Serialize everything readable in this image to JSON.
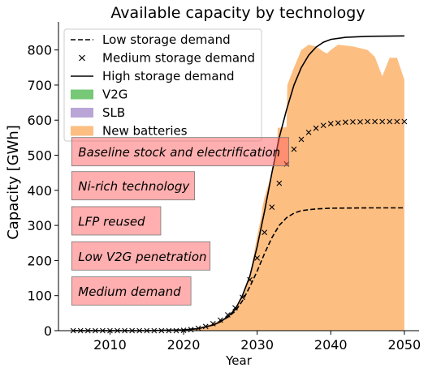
{
  "chart_data": {
    "type": "area",
    "title": "Available capacity by technology",
    "xlabel": "Year",
    "ylabel": "Capacity [GWh]",
    "xlim": [
      2003,
      2052
    ],
    "ylim": [
      0,
      880
    ],
    "x_ticks": [
      2010,
      2020,
      2030,
      2040,
      2050
    ],
    "y_ticks": [
      0,
      100,
      200,
      300,
      400,
      500,
      600,
      700,
      800
    ],
    "legend_position": "top-left",
    "legend": [
      {
        "label": "Low storage demand",
        "kind": "line-dashed",
        "color": "#000000"
      },
      {
        "label": "Medium storage demand",
        "kind": "marker-x",
        "color": "#000000"
      },
      {
        "label": "High storage demand",
        "kind": "line-solid",
        "color": "#000000"
      },
      {
        "label": "V2G",
        "kind": "patch",
        "color": "#77c877"
      },
      {
        "label": "SLB",
        "kind": "patch",
        "color": "#b9a5d6"
      },
      {
        "label": "New batteries",
        "kind": "patch",
        "color": "#fdbe82"
      }
    ],
    "series": [
      {
        "name": "New batteries",
        "kind": "area",
        "color": "#fdbe82",
        "points": [
          [
            2005,
            0
          ],
          [
            2018,
            0
          ],
          [
            2020,
            2
          ],
          [
            2022,
            8
          ],
          [
            2024,
            20
          ],
          [
            2026,
            40
          ],
          [
            2027,
            65
          ],
          [
            2028,
            95
          ],
          [
            2029,
            155
          ],
          [
            2030,
            270
          ],
          [
            2030.6,
            330
          ],
          [
            2030.7,
            350
          ],
          [
            2031,
            380
          ],
          [
            2032,
            450
          ],
          [
            2032.7,
            510
          ],
          [
            2032.8,
            578
          ],
          [
            2034,
            580
          ],
          [
            2034.1,
            700
          ],
          [
            2035,
            750
          ],
          [
            2036,
            800
          ],
          [
            2037,
            815
          ],
          [
            2038,
            810
          ],
          [
            2039,
            795
          ],
          [
            2039.5,
            790
          ],
          [
            2040,
            800
          ],
          [
            2041,
            815
          ],
          [
            2043,
            810
          ],
          [
            2045,
            800
          ],
          [
            2046,
            780
          ],
          [
            2047,
            725
          ],
          [
            2048,
            778
          ],
          [
            2049,
            778
          ],
          [
            2050,
            715
          ]
        ]
      },
      {
        "name": "Low storage demand",
        "kind": "line-dashed",
        "color": "#000000",
        "points": [
          [
            2005,
            0
          ],
          [
            2015,
            0
          ],
          [
            2020,
            2
          ],
          [
            2022,
            6
          ],
          [
            2024,
            16
          ],
          [
            2026,
            38
          ],
          [
            2027,
            55
          ],
          [
            2028,
            85
          ],
          [
            2029,
            125
          ],
          [
            2030,
            170
          ],
          [
            2031,
            220
          ],
          [
            2032,
            265
          ],
          [
            2033,
            300
          ],
          [
            2034,
            322
          ],
          [
            2035,
            335
          ],
          [
            2036,
            342
          ],
          [
            2038,
            347
          ],
          [
            2040,
            349
          ],
          [
            2045,
            350
          ],
          [
            2050,
            350
          ]
        ]
      },
      {
        "name": "Medium storage demand",
        "kind": "markers-x",
        "color": "#000000",
        "points": [
          [
            2005,
            0
          ],
          [
            2006,
            0
          ],
          [
            2007,
            0
          ],
          [
            2008,
            0
          ],
          [
            2009,
            0
          ],
          [
            2010,
            0
          ],
          [
            2011,
            0
          ],
          [
            2012,
            0
          ],
          [
            2013,
            0
          ],
          [
            2014,
            0
          ],
          [
            2015,
            0
          ],
          [
            2016,
            0
          ],
          [
            2017,
            0
          ],
          [
            2018,
            0
          ],
          [
            2019,
            0
          ],
          [
            2020,
            1
          ],
          [
            2021,
            3
          ],
          [
            2022,
            7
          ],
          [
            2023,
            12
          ],
          [
            2024,
            20
          ],
          [
            2025,
            30
          ],
          [
            2026,
            45
          ],
          [
            2027,
            65
          ],
          [
            2028,
            95
          ],
          [
            2029,
            145
          ],
          [
            2030,
            207
          ],
          [
            2031,
            280
          ],
          [
            2032,
            352
          ],
          [
            2033,
            420
          ],
          [
            2034,
            475
          ],
          [
            2035,
            517
          ],
          [
            2036,
            545
          ],
          [
            2037,
            565
          ],
          [
            2038,
            577
          ],
          [
            2039,
            585
          ],
          [
            2040,
            590
          ],
          [
            2041,
            592
          ],
          [
            2042,
            594
          ],
          [
            2043,
            595
          ],
          [
            2044,
            595
          ],
          [
            2045,
            596
          ],
          [
            2046,
            596
          ],
          [
            2047,
            596
          ],
          [
            2048,
            596
          ],
          [
            2049,
            596
          ],
          [
            2050,
            596
          ]
        ]
      },
      {
        "name": "High storage demand",
        "kind": "line-solid",
        "color": "#000000",
        "points": [
          [
            2005,
            0
          ],
          [
            2015,
            0
          ],
          [
            2020,
            2
          ],
          [
            2022,
            6
          ],
          [
            2024,
            16
          ],
          [
            2025,
            25
          ],
          [
            2026,
            40
          ],
          [
            2027,
            60
          ],
          [
            2028,
            100
          ],
          [
            2029,
            155
          ],
          [
            2030,
            240
          ],
          [
            2031,
            340
          ],
          [
            2032,
            450
          ],
          [
            2033,
            550
          ],
          [
            2034,
            630
          ],
          [
            2035,
            700
          ],
          [
            2036,
            750
          ],
          [
            2037,
            785
          ],
          [
            2038,
            808
          ],
          [
            2039,
            822
          ],
          [
            2040,
            830
          ],
          [
            2042,
            836
          ],
          [
            2045,
            839
          ],
          [
            2050,
            840
          ]
        ]
      }
    ],
    "annotations": [
      {
        "text": "Baseline stock and electrification",
        "x_start": 2004.8,
        "x_end": 2034.3,
        "y_center": 510
      },
      {
        "text": "Ni-rich technology",
        "x_start": 2004.8,
        "x_end": 2021.5,
        "y_center": 413
      },
      {
        "text": "LFP reused",
        "x_start": 2004.8,
        "x_end": 2016.9,
        "y_center": 313
      },
      {
        "text": "Low V2G penetration",
        "x_start": 2004.8,
        "x_end": 2023.6,
        "y_center": 213
      },
      {
        "text": "Medium demand",
        "x_start": 2004.8,
        "x_end": 2021.0,
        "y_center": 113
      }
    ],
    "annotation_box_color": "#ff6060"
  }
}
